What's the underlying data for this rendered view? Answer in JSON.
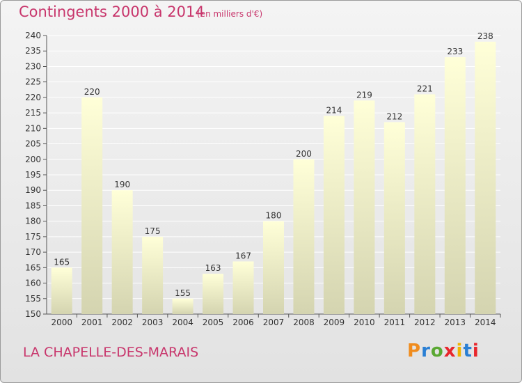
{
  "header": {
    "title": "Contingents 2000 à 2014",
    "subtitle": "(en milliers d'€)"
  },
  "footer": {
    "location": "LA CHAPELLE-DES-MARAIS",
    "logo": "Proxiti",
    "logo_colors": [
      "#f08c1e",
      "#2a7fd4",
      "#5aa832",
      "#e8262c",
      "#f0b400",
      "#2a7fd4",
      "#e8262c"
    ]
  },
  "colors": {
    "bar_top": "#ffffd8",
    "bar_bottom": "#d4d4b0",
    "text_accent": "#c8366c",
    "grid": "#ffffff"
  },
  "chart_data": {
    "type": "bar",
    "title": "Contingents 2000 à 2014",
    "subtitle": "(en milliers d'€)",
    "categories": [
      "2000",
      "2001",
      "2002",
      "2003",
      "2004",
      "2005",
      "2006",
      "2007",
      "2008",
      "2009",
      "2010",
      "2011",
      "2012",
      "2013",
      "2014"
    ],
    "values": [
      165,
      220,
      190,
      175,
      155,
      163,
      167,
      180,
      200,
      214,
      219,
      212,
      221,
      233,
      238
    ],
    "ylim": [
      150,
      240
    ],
    "yticks": [
      150,
      155,
      160,
      165,
      170,
      175,
      180,
      185,
      190,
      195,
      200,
      205,
      210,
      215,
      220,
      225,
      230,
      235,
      240
    ],
    "grid": true,
    "legend": "none"
  }
}
